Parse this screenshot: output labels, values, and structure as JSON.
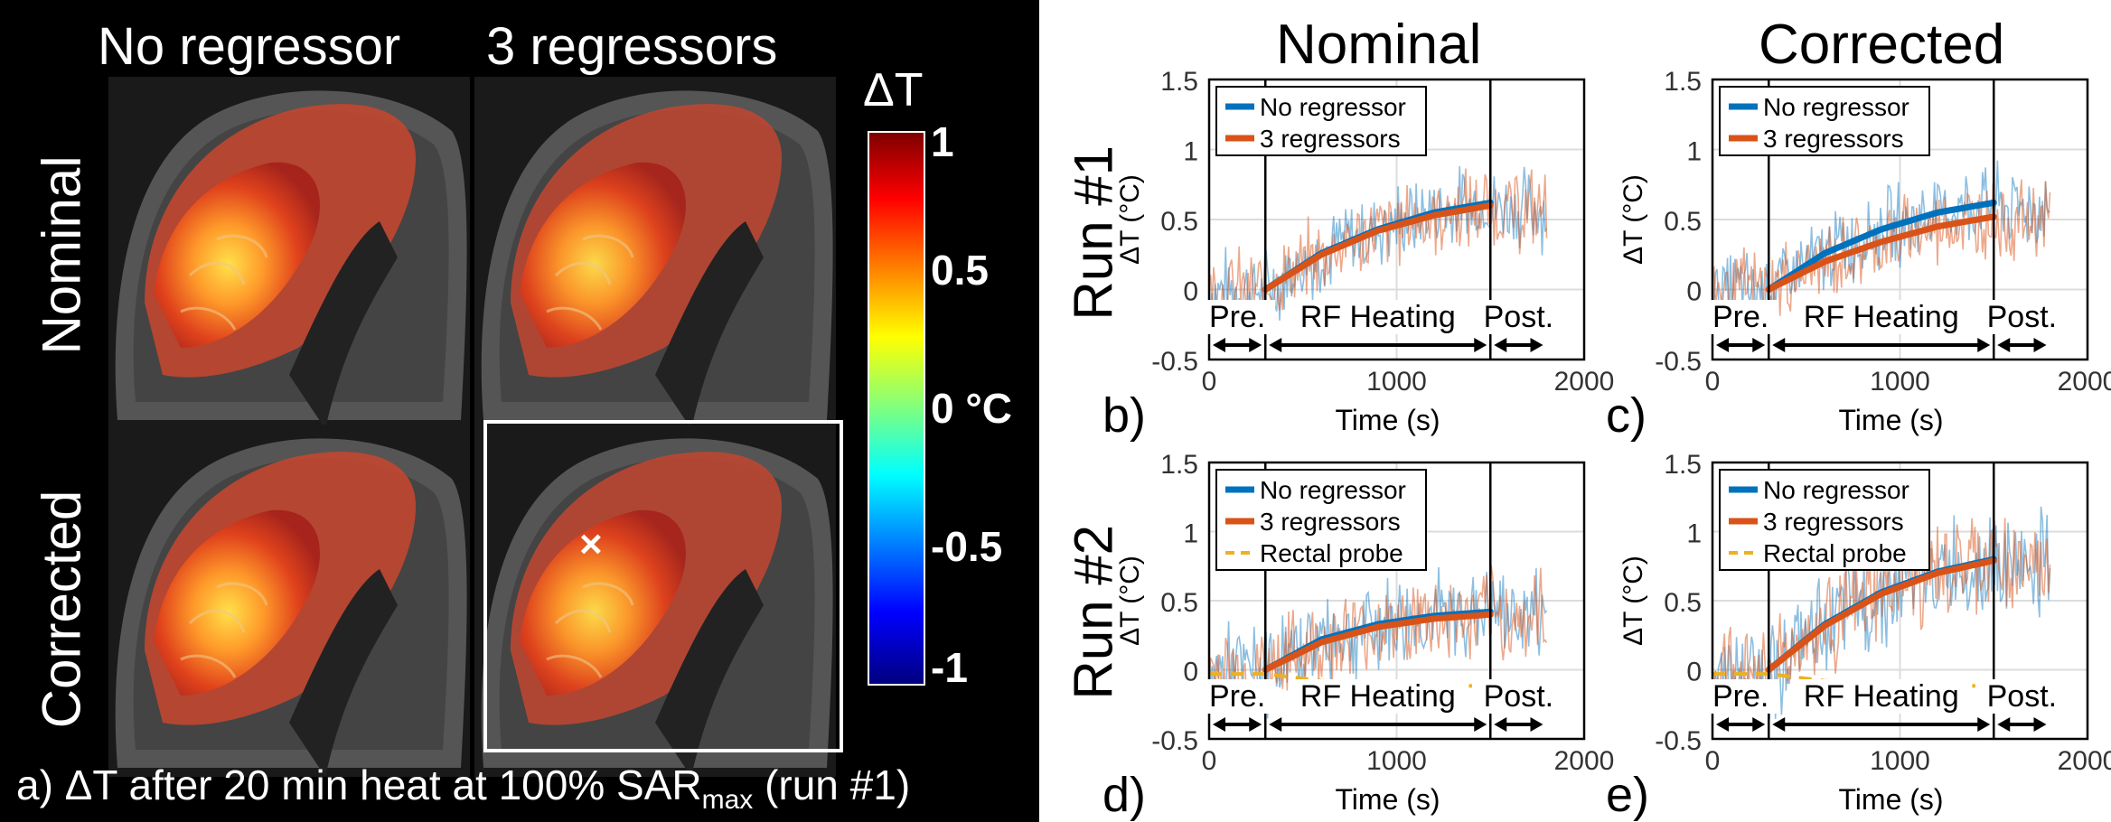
{
  "colors": {
    "no_regressor": "#0072BD",
    "three_regressors": "#D95319",
    "rectal_probe": "#EDB120"
  },
  "panel_a": {
    "col_headers": [
      "No regressor",
      "3 regressors"
    ],
    "row_headers": [
      "Nominal",
      "Corrected"
    ],
    "colorbar": {
      "title": "ΔT",
      "ticks": [
        "1",
        "0.5",
        "0 °C",
        "-0.5",
        "-1"
      ]
    },
    "caption_main": "a) ΔT after 20 min heat at 100% SAR",
    "caption_sub": "max",
    "caption_end": " (run #1)",
    "marker": "×"
  },
  "col_titles": [
    "Nominal",
    "Corrected"
  ],
  "row_titles": [
    "Run #1",
    "Run #2"
  ],
  "chart_data": [
    {
      "id": "b",
      "label": "b)",
      "type": "line",
      "run": "Run #1",
      "condition": "Nominal",
      "xlabel": "Time (s)",
      "ylabel": "ΔT (°C)",
      "xlim": [
        0,
        2000
      ],
      "ylim": [
        -0.5,
        1.5
      ],
      "xticks": [
        "0",
        "1000",
        "2000"
      ],
      "yticks": [
        "-0.5",
        "0",
        "0.5",
        "1",
        "1.5"
      ],
      "phase_bounds": [
        300,
        1500
      ],
      "phases": [
        "Pre.",
        "RF Heating",
        "Post."
      ],
      "legend": [
        "No regressor",
        "3 regressors"
      ],
      "series": [
        {
          "name": "No regressor",
          "x": [
            0,
            300,
            600,
            900,
            1200,
            1500
          ],
          "values": [
            0,
            0,
            0.26,
            0.43,
            0.55,
            0.62
          ],
          "noise": 0.22
        },
        {
          "name": "3 regressors",
          "x": [
            0,
            300,
            600,
            900,
            1200,
            1500
          ],
          "values": [
            0,
            0,
            0.25,
            0.42,
            0.53,
            0.6
          ],
          "noise": 0.22
        }
      ]
    },
    {
      "id": "c",
      "label": "c)",
      "type": "line",
      "run": "Run #1",
      "condition": "Corrected",
      "xlabel": "Time (s)",
      "ylabel": "ΔT (°C)",
      "xlim": [
        0,
        2000
      ],
      "ylim": [
        -0.5,
        1.5
      ],
      "xticks": [
        "0",
        "1000",
        "2000"
      ],
      "yticks": [
        "-0.5",
        "0",
        "0.5",
        "1",
        "1.5"
      ],
      "phase_bounds": [
        300,
        1500
      ],
      "phases": [
        "Pre.",
        "RF Heating",
        "Post."
      ],
      "legend": [
        "No regressor",
        "3 regressors"
      ],
      "series": [
        {
          "name": "No regressor",
          "x": [
            0,
            300,
            600,
            900,
            1200,
            1500
          ],
          "values": [
            0,
            0,
            0.26,
            0.43,
            0.55,
            0.62
          ],
          "noise": 0.22
        },
        {
          "name": "3 regressors",
          "x": [
            0,
            300,
            600,
            900,
            1200,
            1500
          ],
          "values": [
            0,
            0,
            0.2,
            0.34,
            0.45,
            0.52
          ],
          "noise": 0.22
        }
      ]
    },
    {
      "id": "d",
      "label": "d)",
      "type": "line",
      "run": "Run #2",
      "condition": "Nominal",
      "xlabel": "Time (s)",
      "ylabel": "ΔT (°C)",
      "xlim": [
        0,
        2000
      ],
      "ylim": [
        -0.5,
        1.5
      ],
      "xticks": [
        "0",
        "1000",
        "2000"
      ],
      "yticks": [
        "-0.5",
        "0",
        "0.5",
        "1",
        "1.5"
      ],
      "phase_bounds": [
        300,
        1500
      ],
      "phases": [
        "Pre.",
        "RF Heating",
        "Post."
      ],
      "legend": [
        "No regressor",
        "3 regressors",
        "Rectal probe"
      ],
      "series": [
        {
          "name": "No regressor",
          "x": [
            0,
            300,
            600,
            900,
            1200,
            1500
          ],
          "values": [
            0,
            0,
            0.22,
            0.33,
            0.39,
            0.42
          ],
          "noise": 0.25
        },
        {
          "name": "3 regressors",
          "x": [
            0,
            300,
            600,
            900,
            1200,
            1500
          ],
          "values": [
            0,
            0,
            0.2,
            0.31,
            0.37,
            0.4
          ],
          "noise": 0.25
        },
        {
          "name": "Rectal probe",
          "x": [
            0,
            300,
            600,
            900,
            1200,
            1500,
            1800
          ],
          "values": [
            -0.03,
            -0.03,
            -0.08,
            -0.1,
            -0.11,
            -0.12,
            -0.12
          ]
        }
      ]
    },
    {
      "id": "e",
      "label": "e)",
      "type": "line",
      "run": "Run #2",
      "condition": "Corrected",
      "xlabel": "Time (s)",
      "ylabel": "ΔT (°C)",
      "xlim": [
        0,
        2000
      ],
      "ylim": [
        -0.5,
        1.5
      ],
      "xticks": [
        "0",
        "1000",
        "2000"
      ],
      "yticks": [
        "-0.5",
        "0",
        "0.5",
        "1",
        "1.5"
      ],
      "phase_bounds": [
        300,
        1500
      ],
      "phases": [
        "Pre.",
        "RF Heating",
        "Post."
      ],
      "legend": [
        "No regressor",
        "3 regressors",
        "Rectal probe"
      ],
      "series": [
        {
          "name": "No regressor",
          "x": [
            0,
            300,
            600,
            900,
            1200,
            1500
          ],
          "values": [
            0,
            0,
            0.33,
            0.56,
            0.71,
            0.8
          ],
          "noise": 0.28
        },
        {
          "name": "3 regressors",
          "x": [
            0,
            300,
            600,
            900,
            1200,
            1500
          ],
          "values": [
            0,
            0,
            0.32,
            0.55,
            0.7,
            0.79
          ],
          "noise": 0.28
        },
        {
          "name": "Rectal probe",
          "x": [
            0,
            300,
            600,
            900,
            1200,
            1500,
            1800
          ],
          "values": [
            -0.03,
            -0.03,
            -0.08,
            -0.1,
            -0.11,
            -0.12,
            -0.12
          ]
        }
      ]
    }
  ]
}
